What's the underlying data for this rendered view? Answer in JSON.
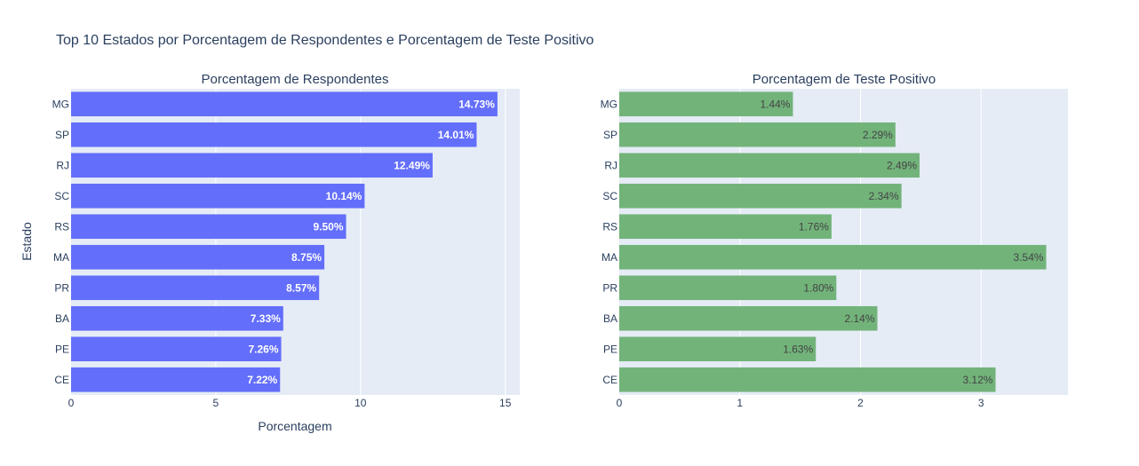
{
  "colors": {
    "plot_bg": "#e5ecf6",
    "grid": "#ffffff",
    "text": "#2a3f5f",
    "bar_left": "#636efa",
    "bar_right": "#72b37a"
  },
  "chart_data": {
    "type": "bar",
    "orientation": "horizontal",
    "title": "Top 10 Estados por Porcentagem de Respondentes e Porcentagem de Teste Positivo",
    "ylabel": "Estado",
    "categories": [
      "MG",
      "SP",
      "RJ",
      "SC",
      "RS",
      "MA",
      "PR",
      "BA",
      "PE",
      "CE"
    ],
    "subplots": [
      {
        "title": "Porcentagem de Respondentes",
        "xlabel": "Porcentagem",
        "values": [
          14.73,
          14.01,
          12.49,
          10.14,
          9.5,
          8.75,
          8.57,
          7.33,
          7.26,
          7.22
        ],
        "labels": [
          "14.73%",
          "14.01%",
          "12.49%",
          "10.14%",
          "9.50%",
          "8.75%",
          "8.57%",
          "7.33%",
          "7.26%",
          "7.22%"
        ],
        "xlim": [
          0,
          15.5
        ],
        "xticks": [
          0,
          5,
          10,
          15
        ]
      },
      {
        "title": "Porcentagem de Teste Positivo",
        "xlabel": "",
        "values": [
          1.44,
          2.29,
          2.49,
          2.34,
          1.76,
          3.54,
          1.8,
          2.14,
          1.63,
          3.12
        ],
        "labels": [
          "1.44%",
          "2.29%",
          "2.49%",
          "2.34%",
          "1.76%",
          "3.54%",
          "1.80%",
          "2.14%",
          "1.63%",
          "3.12%"
        ],
        "xlim": [
          0,
          3.72
        ],
        "xticks": [
          0,
          1,
          2,
          3
        ]
      }
    ]
  }
}
